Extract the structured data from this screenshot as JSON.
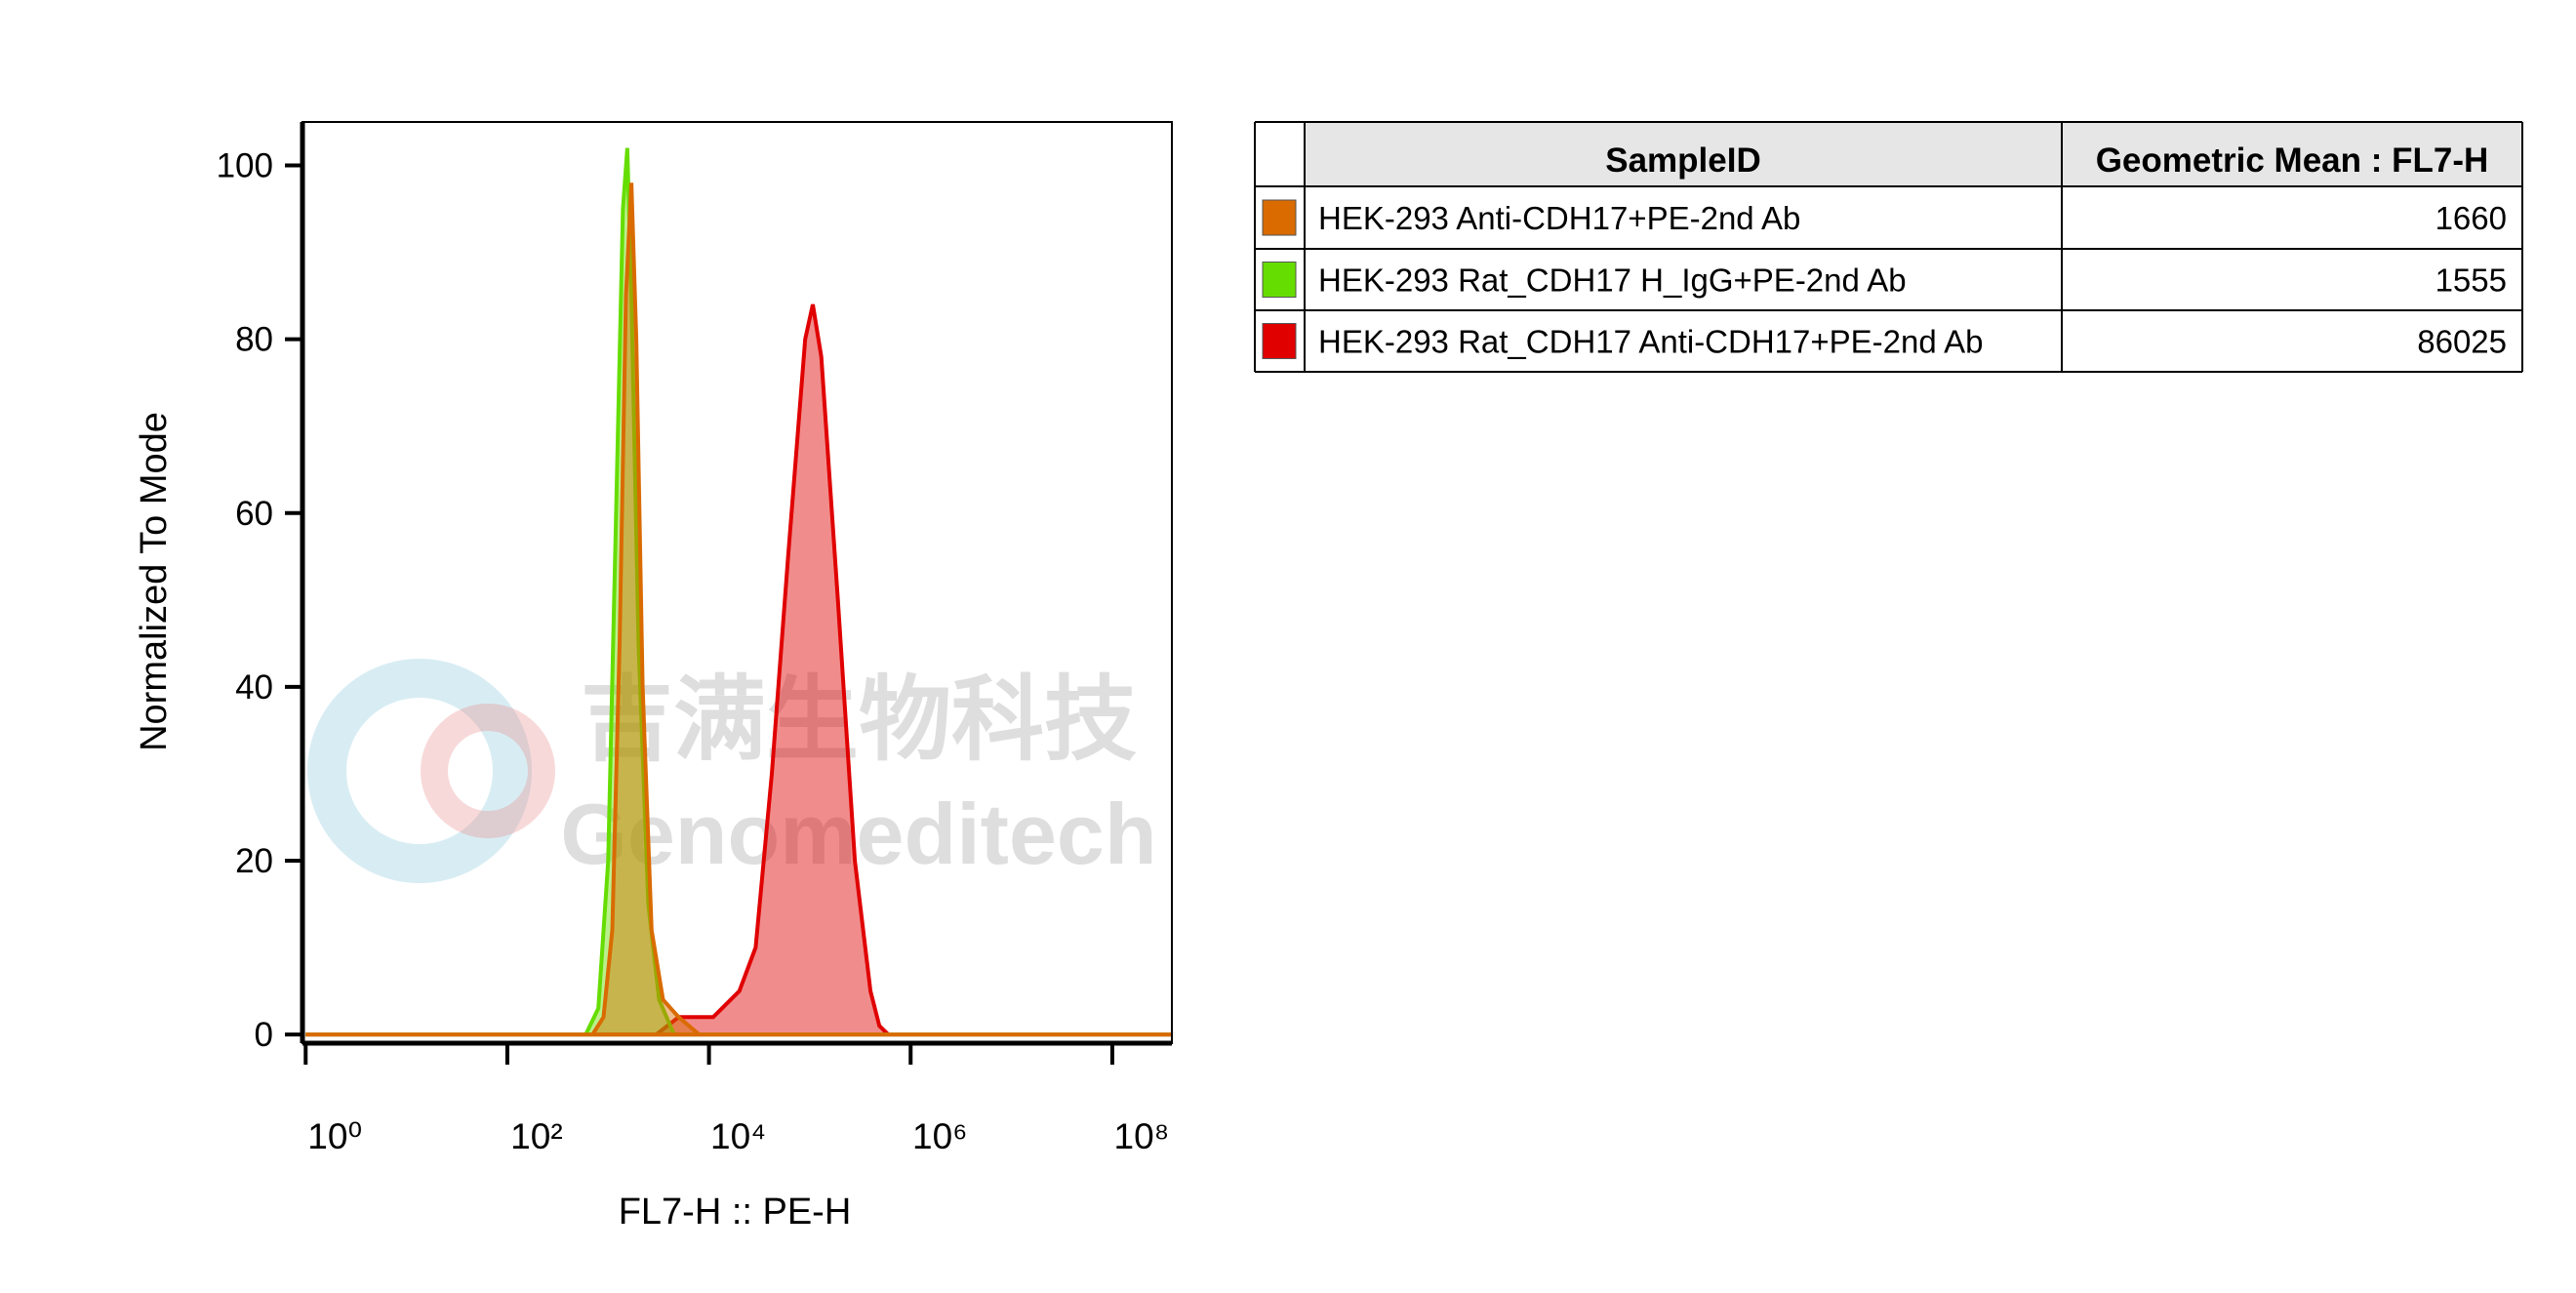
{
  "chart_data": {
    "type": "area",
    "y_label": "Normalized To Mode",
    "x_label": "FL7-H :: PE-H",
    "log_x": true,
    "xlim": [
      0.93,
      390000000
    ],
    "xticks": [
      {
        "value": 1,
        "label": "10⁰"
      },
      {
        "value": 100,
        "label": "10²"
      },
      {
        "value": 10000,
        "label": "10⁴"
      },
      {
        "value": 1000000,
        "label": "10⁶"
      },
      {
        "value": 100000000,
        "label": "10⁸"
      }
    ],
    "ylim": [
      -1,
      105
    ],
    "yticks": [
      0,
      20,
      40,
      60,
      80,
      100
    ],
    "table_headers": [
      "SampleID",
      "Geometric Mean : FL7-H"
    ],
    "watermark": [
      "吉满生物科技",
      "Genomeditech"
    ],
    "series": [
      {
        "name": "HEK-293 Anti-CDH17+PE-2nd Ab",
        "color": "#d96b00",
        "geometric_mean": 1660,
        "x": [
          1,
          700,
          900,
          1100,
          1300,
          1500,
          1700,
          1900,
          2200,
          2700,
          3500,
          5000,
          8000,
          390000000
        ],
        "values": [
          0,
          0,
          2,
          12,
          45,
          85,
          98,
          80,
          40,
          12,
          4,
          2,
          0,
          0
        ]
      },
      {
        "name": "HEK-293 Rat_CDH17 H_IgG+PE-2nd Ab",
        "color": "#66dd00",
        "geometric_mean": 1555,
        "x": [
          1,
          600,
          800,
          1000,
          1200,
          1400,
          1550,
          1700,
          2000,
          2500,
          3200,
          4500,
          390000000
        ],
        "values": [
          0,
          0,
          3,
          20,
          60,
          95,
          102,
          85,
          45,
          15,
          4,
          0,
          0
        ]
      },
      {
        "name": "HEK-293 Rat_CDH17 Anti-CDH17+PE-2nd Ab",
        "color": "#e00000",
        "geometric_mean": 86025,
        "x": [
          1,
          3000,
          5000,
          11000,
          20000,
          29000,
          42000,
          61000,
          90000,
          107000,
          130000,
          190000,
          280000,
          400000,
          490000,
          600000,
          390000000
        ],
        "values": [
          0,
          0,
          2,
          2,
          5,
          10,
          30,
          55,
          80,
          84,
          78,
          50,
          20,
          5,
          1,
          0,
          0
        ]
      }
    ]
  }
}
